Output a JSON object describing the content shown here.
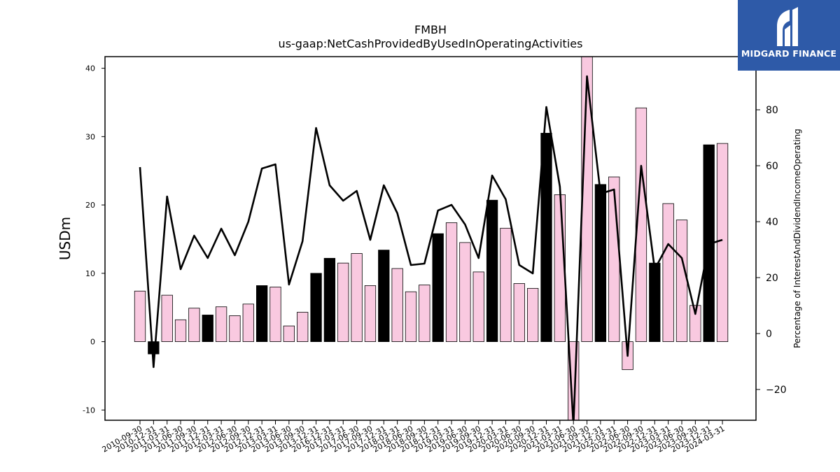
{
  "brand": {
    "name": "MIDGARD FINANCE",
    "color": "#2e5aa8"
  },
  "chart_data": {
    "type": "bar",
    "title": "FMBH",
    "subtitle": "us-gaap:NetCashProvidedByUsedInOperatingActivities",
    "ylabel": "USDm",
    "y2label": "Percentage of InterestAndDividendIncomeOperating",
    "ylim": [
      -11.5,
      41.7
    ],
    "y2lim": [
      -31,
      99
    ],
    "yticks": [
      -10,
      0,
      10,
      20,
      30,
      40
    ],
    "y2ticks": [
      -20,
      0,
      20,
      40,
      60,
      80
    ],
    "colors": {
      "q4_bar": "#000000",
      "other_bar": "#f9c9e0",
      "line": "#000000"
    },
    "categories": [
      "2010-09-30",
      "2010-12-31",
      "2011-03-31",
      "2011-06-30",
      "2011-09-30",
      "2011-12-31",
      "2012-03-31",
      "2012-06-30",
      "2012-09-30",
      "2012-12-31",
      "2013-03-31",
      "2013-06-30",
      "2013-09-30",
      "2013-12-31",
      "2016-12-31",
      "2017-03-31",
      "2017-06-30",
      "2017-09-30",
      "2017-12-31",
      "2018-03-31",
      "2018-06-30",
      "2018-09-30",
      "2018-12-31",
      "2019-03-31",
      "2019-06-30",
      "2019-09-30",
      "2019-12-31",
      "2020-03-31",
      "2020-06-30",
      "2020-09-30",
      "2020-12-31",
      "2021-03-31",
      "2021-06-30",
      "2021-09-30",
      "2021-12-31",
      "2022-03-31",
      "2022-06-30",
      "2022-09-30",
      "2022-12-31",
      "2023-03-31",
      "2023-06-30",
      "2023-09-30",
      "2023-12-31",
      "2024-03-31"
    ],
    "series": [
      {
        "kind": "bar",
        "values": [
          7.4,
          -1.8,
          6.8,
          3.2,
          4.9,
          3.9,
          5.1,
          3.8,
          5.5,
          8.2,
          8.0,
          2.3,
          4.3,
          10.0,
          12.2,
          11.5,
          12.9,
          8.2,
          13.4,
          10.7,
          7.3,
          8.3,
          15.8,
          17.4,
          14.5,
          10.2,
          20.7,
          16.6,
          8.5,
          7.8,
          30.5,
          21.5,
          -11.5,
          44.0,
          23.0,
          24.1,
          -4.1,
          34.2,
          11.5,
          20.2,
          17.8,
          5.3,
          28.8,
          29.0
        ],
        "highlight": [
          false,
          true,
          false,
          false,
          false,
          true,
          false,
          false,
          false,
          true,
          false,
          false,
          false,
          true,
          true,
          false,
          false,
          false,
          true,
          false,
          false,
          false,
          true,
          false,
          false,
          false,
          true,
          false,
          false,
          false,
          true,
          false,
          false,
          false,
          true,
          false,
          false,
          false,
          true,
          false,
          false,
          false,
          true,
          false
        ]
      },
      {
        "kind": "line",
        "axis": "right",
        "values": [
          null,
          null,
          null,
          null,
          null,
          null,
          null,
          null,
          null,
          null,
          null,
          null,
          null,
          null,
          null,
          null,
          null,
          null,
          null,
          null,
          null,
          null,
          null,
          null,
          null,
          null,
          null,
          null,
          null,
          null,
          null,
          null,
          null,
          null,
          null,
          null,
          null,
          null,
          null,
          null,
          null,
          null,
          null,
          null
        ],
        "points": [
          [
            0,
            59.5
          ],
          [
            1,
            -12
          ],
          [
            2,
            49
          ],
          [
            3,
            23
          ],
          [
            4,
            35
          ],
          [
            5,
            27
          ],
          [
            6,
            37.5
          ],
          [
            7,
            28
          ],
          [
            8,
            40
          ],
          [
            9,
            59
          ],
          [
            10,
            60.5
          ],
          [
            11,
            17.5
          ],
          [
            12,
            33
          ],
          [
            13,
            73.5
          ],
          [
            14,
            53
          ],
          [
            15,
            47.5
          ],
          [
            16,
            51
          ],
          [
            17,
            33.5
          ],
          [
            18,
            53
          ],
          [
            19,
            43
          ],
          [
            20,
            24.5
          ],
          [
            21,
            25
          ],
          [
            22,
            44
          ],
          [
            23,
            46
          ],
          [
            24,
            39
          ],
          [
            25,
            27
          ],
          [
            26,
            56.5
          ],
          [
            27,
            48
          ],
          [
            28,
            24.5
          ],
          [
            29,
            21.5
          ],
          [
            30,
            81
          ],
          [
            31,
            52.5
          ],
          [
            32,
            -33
          ],
          [
            33,
            92
          ],
          [
            34,
            50
          ],
          [
            35,
            51.5
          ],
          [
            36,
            -8
          ],
          [
            37,
            60
          ],
          [
            38,
            23
          ],
          [
            39,
            32
          ],
          [
            40,
            27
          ],
          [
            41,
            7
          ],
          [
            42,
            32
          ],
          [
            43,
            33.5
          ]
        ]
      }
    ],
    "grid": false,
    "legend": "none"
  }
}
